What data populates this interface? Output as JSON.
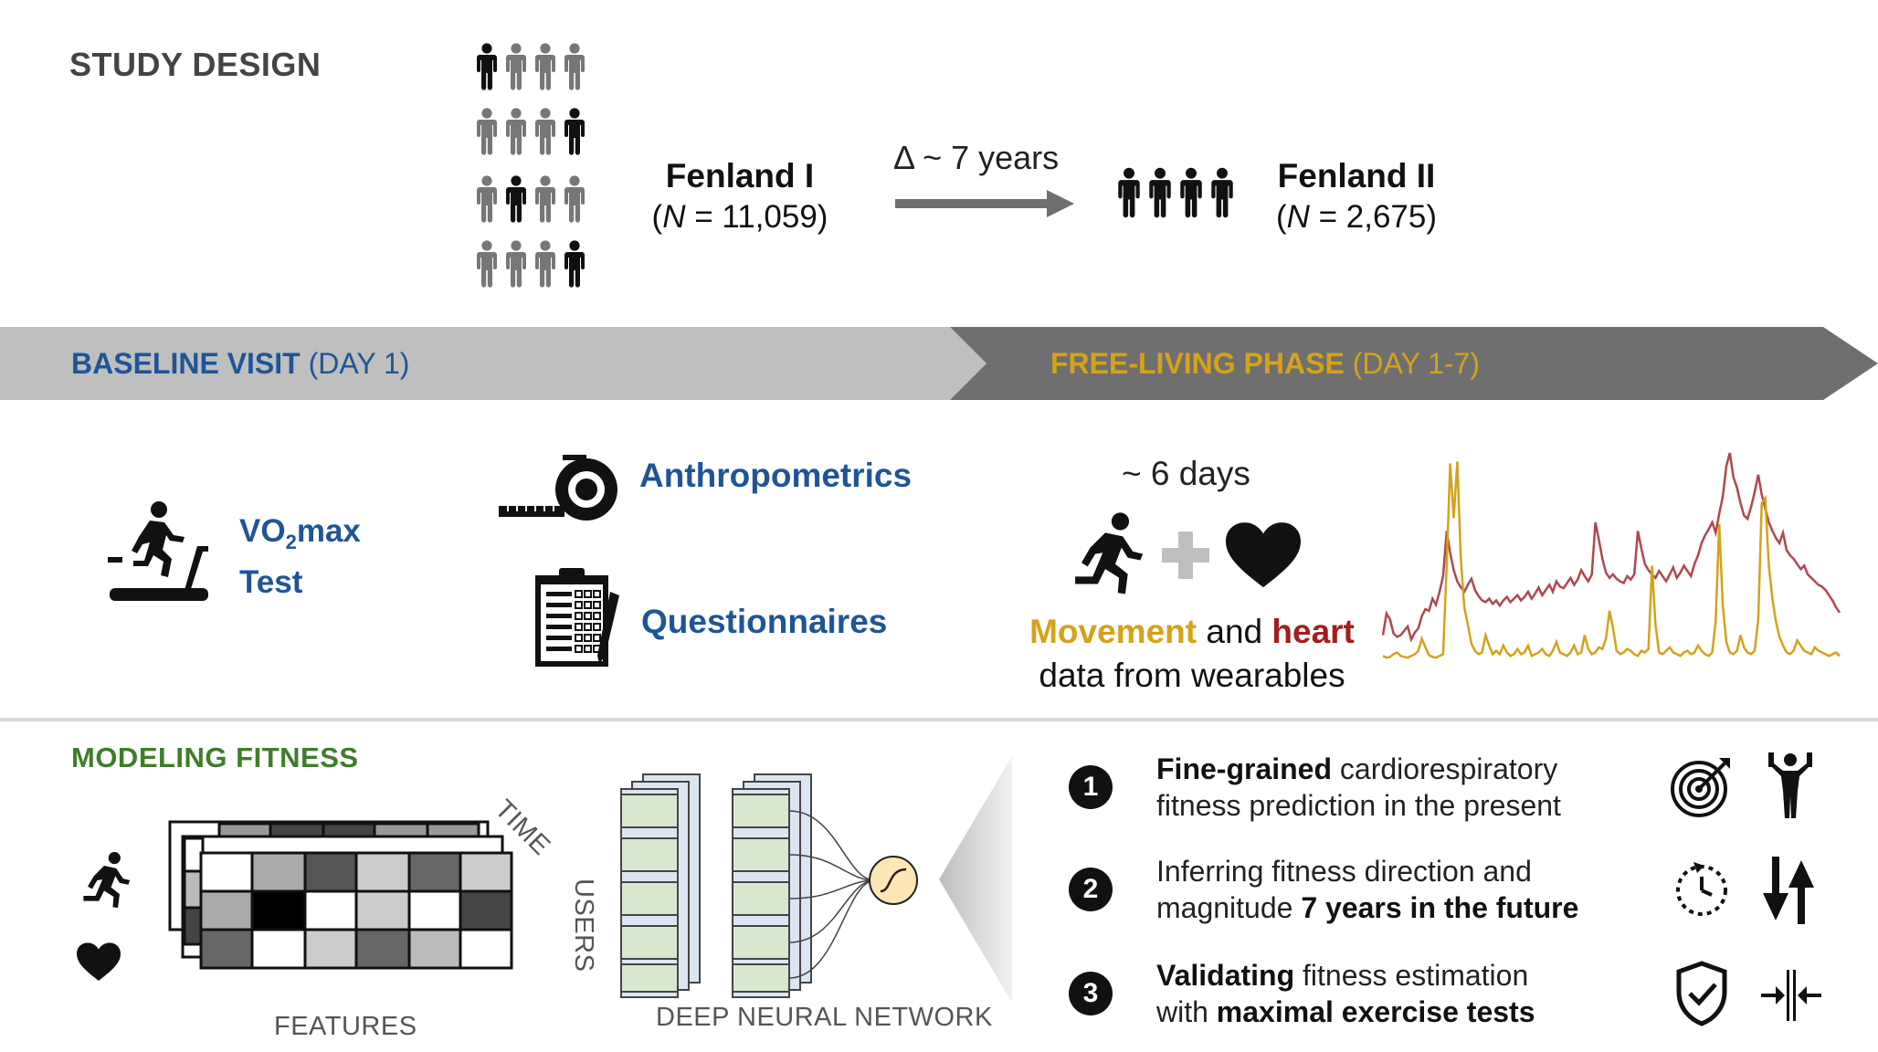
{
  "study_design": {
    "title": "STUDY DESIGN",
    "cohort1": {
      "name": "Fenland I",
      "n_prefix": "(",
      "n_italic": "N",
      "n_suffix": " = 11,059)"
    },
    "arrow_label": "Δ ~ 7 years",
    "cohort2": {
      "name": "Fenland II",
      "n_prefix": "(",
      "n_italic": "N",
      "n_suffix": " = 2,675)"
    }
  },
  "phases": {
    "baseline": {
      "strong": "BASELINE VISIT",
      "rest": " (DAY 1)"
    },
    "free_living": {
      "strong": "FREE-LIVING PHASE",
      "rest": " (DAY 1-7)"
    }
  },
  "baseline_items": {
    "vo2_line1_a": "VO",
    "vo2_sub": "2",
    "vo2_line1_b": "max",
    "vo2_line2": "Test",
    "anthropometrics": "Anthropometrics",
    "questionnaires": "Questionnaires"
  },
  "free_living": {
    "duration": "~ 6 days",
    "movement": "Movement",
    "and": " and ",
    "heart": "heart",
    "line2": "data from wearables"
  },
  "modeling": {
    "title": "MODELING FITNESS",
    "time_label": "TIME",
    "users_label": "USERS",
    "features_label": "FEATURES",
    "dnn_label": "DEEP NEURAL NETWORK"
  },
  "outcomes": [
    {
      "num": "1",
      "bold1": "Fine-grained",
      "t1": " cardiorespiratory",
      "t2": "fitness prediction in the present",
      "bold2": "",
      "icons": [
        "target-icon",
        "strongman-icon"
      ]
    },
    {
      "num": "2",
      "bold1": "",
      "t1": "Inferring fitness direction and",
      "t2": "magnitude ",
      "bold2": "7 years in the future",
      "icons": [
        "clock-icon",
        "up-down-arrows-icon"
      ]
    },
    {
      "num": "3",
      "bold1": "Validating",
      "t1": " fitness estimation",
      "t2": "with ",
      "bold2": "maximal exercise tests",
      "icons": [
        "shield-check-icon",
        "compress-icon"
      ]
    }
  ],
  "colors": {
    "blue": "#1f5596",
    "gold": "#d4a21b",
    "red": "#a51d1d",
    "green": "#3f7d2a",
    "band_light": "#bfbfbf",
    "band_dark": "#6f6f6f"
  },
  "icons": [
    "person-icon",
    "treadmill-icon",
    "tape-measure-icon",
    "clipboard-icon",
    "runner-icon",
    "plus-icon",
    "heart-icon",
    "sigmoid-icon"
  ],
  "chart_data": {
    "type": "line",
    "series": [
      {
        "color": "#b0474f",
        "values": [
          30,
          55,
          48,
          32,
          28,
          30,
          35,
          40,
          25,
          33,
          38,
          52,
          60,
          58,
          72,
          65,
          80,
          98,
          150,
          125,
          105,
          92,
          85,
          80,
          88,
          95,
          82,
          75,
          70,
          68,
          72,
          66,
          70,
          64,
          70,
          74,
          68,
          72,
          76,
          70,
          74,
          80,
          72,
          78,
          85,
          76,
          82,
          88,
          80,
          92,
          86,
          84,
          90,
          96,
          88,
          94,
          105,
          98,
          92,
          100,
          160,
          140,
          118,
          102,
          96,
          100,
          95,
          92,
          90,
          98,
          94,
          100,
          150,
          130,
          112,
          105,
          100,
          96,
          104,
          98,
          92,
          100,
          108,
          96,
          102,
          110,
          104,
          98,
          112,
          122,
          136,
          145,
          152,
          160,
          148,
          170,
          190,
          225,
          240,
          212,
          200,
          182,
          168,
          164,
          178,
          195,
          215,
          192,
          176,
          160,
          150,
          142,
          136,
          148,
          128,
          122,
          118,
          112,
          106,
          110,
          100,
          96,
          92,
          88,
          86,
          82,
          76,
          70,
          62,
          56
        ]
      },
      {
        "color": "#d4a21b",
        "values": [
          6,
          4,
          5,
          8,
          10,
          6,
          5,
          4,
          6,
          8,
          12,
          26,
          16,
          7,
          5,
          4,
          6,
          8,
          110,
          228,
          165,
          230,
          118,
          62,
          42,
          20,
          12,
          8,
          10,
          30,
          18,
          8,
          12,
          8,
          18,
          10,
          6,
          8,
          14,
          8,
          10,
          18,
          6,
          8,
          10,
          14,
          8,
          6,
          12,
          22,
          10,
          8,
          6,
          10,
          18,
          8,
          10,
          30,
          14,
          8,
          10,
          16,
          14,
          26,
          58,
          38,
          12,
          8,
          10,
          14,
          12,
          8,
          6,
          12,
          10,
          14,
          110,
          42,
          10,
          8,
          12,
          16,
          10,
          8,
          6,
          10,
          12,
          8,
          10,
          18,
          12,
          8,
          6,
          10,
          46,
          158,
          64,
          22,
          10,
          8,
          12,
          30,
          16,
          10,
          8,
          12,
          48,
          182,
          188,
          110,
          72,
          46,
          28,
          18,
          10,
          8,
          12,
          24,
          18,
          12,
          10,
          8,
          16,
          12,
          10,
          8,
          6,
          8,
          10,
          6
        ]
      }
    ]
  }
}
